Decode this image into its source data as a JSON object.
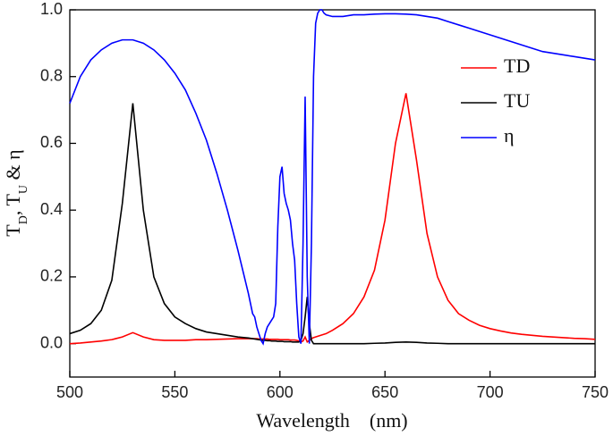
{
  "chart_data": {
    "type": "line",
    "x_label": "Wavelength    (nm)",
    "y_label": [
      {
        "text": "T"
      },
      {
        "text": "D",
        "sub": true
      },
      {
        "text": ", T"
      },
      {
        "text": "U",
        "sub": true
      },
      {
        "text": " & η"
      }
    ],
    "xlim": [
      500,
      750
    ],
    "xticks": [
      500,
      550,
      600,
      650,
      700,
      750
    ],
    "ylim": [
      -0.1,
      1.0
    ],
    "yticks": [
      {
        "value": 0,
        "label": "0.0"
      },
      0.2,
      0.4,
      0.6,
      0.8,
      {
        "value": 1,
        "label": "1.0"
      }
    ],
    "legend": "upper right",
    "x": [
      500,
      505,
      510,
      515,
      520,
      525,
      530,
      535,
      540,
      545,
      550,
      555,
      560,
      565,
      570,
      575,
      580,
      585,
      586,
      587,
      588,
      589,
      590,
      591,
      592,
      593,
      594,
      595,
      596,
      597,
      598,
      599,
      600,
      601,
      602,
      603,
      604,
      605,
      606,
      607,
      608,
      609,
      610,
      611,
      612,
      613,
      614,
      615,
      616,
      617,
      618,
      619,
      620,
      621,
      622,
      625,
      630,
      635,
      640,
      645,
      650,
      655,
      660,
      665,
      670,
      675,
      680,
      685,
      690,
      695,
      700,
      705,
      710,
      715,
      720,
      725,
      730,
      735,
      740,
      745,
      750
    ],
    "series": [
      {
        "name": "TD",
        "color": "#ff0000",
        "values": [
          0,
          0.002,
          0.005,
          0.008,
          0.012,
          0.02,
          0.033,
          0.02,
          0.012,
          0.01,
          0.01,
          0.01,
          0.012,
          0.012,
          0.013,
          0.014,
          0.015,
          0.015,
          0.015,
          0.015,
          0.015,
          0.015,
          0.014,
          0.014,
          0.014,
          0.014,
          0.014,
          0.013,
          0.013,
          0.013,
          0.013,
          0.013,
          0.012,
          0.012,
          0.012,
          0.012,
          0.012,
          0.011,
          0.011,
          0.011,
          0.01,
          0.008,
          0.005,
          0.008,
          0.02,
          0.005,
          0.01,
          0.015,
          0.018,
          0.02,
          0.022,
          0.024,
          0.026,
          0.028,
          0.03,
          0.04,
          0.06,
          0.09,
          0.14,
          0.22,
          0.37,
          0.6,
          0.75,
          0.55,
          0.33,
          0.2,
          0.13,
          0.09,
          0.07,
          0.055,
          0.045,
          0.038,
          0.032,
          0.028,
          0.025,
          0.022,
          0.02,
          0.018,
          0.016,
          0.015,
          0.013
        ]
      },
      {
        "name": "TU",
        "color": "#000000",
        "values": [
          0.03,
          0.04,
          0.06,
          0.1,
          0.19,
          0.42,
          0.72,
          0.4,
          0.2,
          0.12,
          0.08,
          0.06,
          0.045,
          0.035,
          0.03,
          0.025,
          0.02,
          0.017,
          0.016,
          0.015,
          0.014,
          0.013,
          0.012,
          0.011,
          0.01,
          0.01,
          0.009,
          0.009,
          0.008,
          0.008,
          0.008,
          0.007,
          0.007,
          0.007,
          0.006,
          0.006,
          0.006,
          0.006,
          0.005,
          0.005,
          0.005,
          0.005,
          0.01,
          0.03,
          0.08,
          0.14,
          0.06,
          0.01,
          0,
          0,
          0,
          0,
          0,
          0,
          0,
          0,
          0,
          0,
          0,
          0.001,
          0.002,
          0.004,
          0.005,
          0.004,
          0.002,
          0.001,
          0,
          0,
          0,
          0,
          0,
          0,
          0,
          0,
          0,
          0,
          0,
          0,
          0,
          0,
          0
        ]
      },
      {
        "name": "η",
        "color": "#0000ff",
        "values": [
          0.72,
          0.8,
          0.85,
          0.88,
          0.9,
          0.91,
          0.91,
          0.9,
          0.88,
          0.85,
          0.81,
          0.76,
          0.69,
          0.61,
          0.51,
          0.4,
          0.28,
          0.15,
          0.12,
          0.09,
          0.08,
          0.05,
          0.03,
          0.01,
          0,
          0.03,
          0.05,
          0.06,
          0.07,
          0.08,
          0.12,
          0.35,
          0.5,
          0.53,
          0.45,
          0.42,
          0.4,
          0.37,
          0.3,
          0.25,
          0.12,
          0.02,
          0,
          0.3,
          0.74,
          0.2,
          0,
          0.3,
          0.8,
          0.96,
          0.99,
          1,
          1,
          0.99,
          0.985,
          0.98,
          0.98,
          0.985,
          0.985,
          0.987,
          0.988,
          0.988,
          0.987,
          0.985,
          0.98,
          0.975,
          0.965,
          0.955,
          0.945,
          0.935,
          0.925,
          0.915,
          0.905,
          0.895,
          0.885,
          0.875,
          0.87,
          0.865,
          0.86,
          0.855,
          0.85
        ]
      }
    ]
  }
}
